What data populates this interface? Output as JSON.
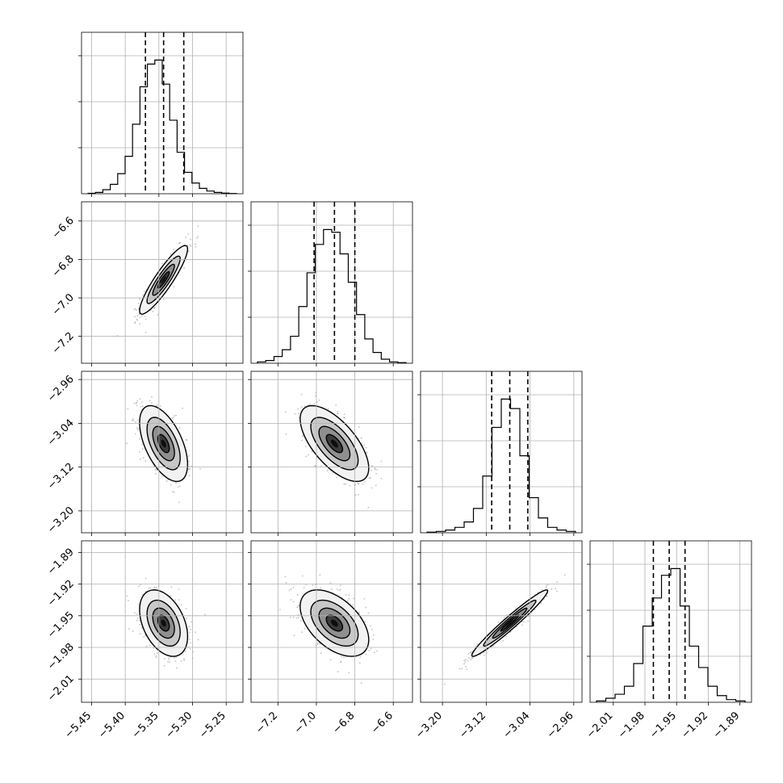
{
  "chart_data": {
    "type": "corner",
    "title": "",
    "grid": true,
    "parameters": [
      {
        "range": [
          -5.465,
          -5.225
        ],
        "ticks": [
          -5.45,
          -5.4,
          -5.35,
          -5.3,
          -5.25
        ],
        "tick_labels": [
          "−5.45",
          "−5.40",
          "−5.35",
          "−5.30",
          "−5.25"
        ],
        "quantiles": [
          -5.37,
          -5.343,
          -5.313
        ],
        "hist": [
          0.3,
          1,
          3,
          7,
          15,
          28,
          52,
          80,
          97,
          100,
          82,
          55,
          31,
          16,
          8,
          4,
          2,
          1,
          0.5,
          0.2
        ]
      },
      {
        "range": [
          -7.34,
          -6.5
        ],
        "ticks": [
          -7.2,
          -7.0,
          -6.8,
          -6.6
        ],
        "tick_labels": [
          "−7.2",
          "−7.0",
          "−6.8",
          "−6.6"
        ],
        "quantiles": [
          -7.012,
          -6.906,
          -6.8
        ],
        "hist": [
          1,
          2,
          5,
          10,
          20,
          42,
          67,
          88,
          99,
          97,
          81,
          60,
          36,
          18,
          8,
          3,
          1,
          0.5
        ]
      },
      {
        "range": [
          -3.24,
          -2.945
        ],
        "ticks": [
          -3.2,
          -3.12,
          -3.04,
          -2.96
        ],
        "tick_labels": [
          "−3.20",
          "−3.12",
          "−3.04",
          "−2.96"
        ],
        "quantiles": [
          -3.11,
          -3.077,
          -3.044
        ],
        "hist": [
          0.5,
          1,
          2,
          4,
          8,
          18,
          42,
          78,
          99,
          92,
          57,
          26,
          11,
          4,
          2,
          1
        ]
      },
      {
        "range": [
          -2.032,
          -1.879
        ],
        "ticks": [
          -2.01,
          -1.98,
          -1.95,
          -1.92,
          -1.89
        ],
        "tick_labels": [
          "−2.01",
          "−1.98",
          "−1.95",
          "−1.92",
          "−1.89"
        ],
        "quantiles": [
          -1.972,
          -1.957,
          -1.942
        ],
        "hist": [
          1,
          3,
          6,
          12,
          29,
          57,
          78,
          95,
          100,
          72,
          42,
          26,
          12,
          5,
          2,
          1
        ]
      }
    ],
    "pairs": [
      {
        "row": 1,
        "col": 0,
        "center": [
          -5.343,
          -6.906
        ],
        "sigma": [
          0.017,
          0.085
        ],
        "corr": 0.9
      },
      {
        "row": 2,
        "col": 0,
        "center": [
          -5.343,
          -3.077
        ],
        "sigma": [
          0.017,
          0.033
        ],
        "corr": -0.55
      },
      {
        "row": 2,
        "col": 1,
        "center": [
          -6.906,
          -3.077
        ],
        "sigma": [
          0.085,
          0.033
        ],
        "corr": -0.65
      },
      {
        "row": 3,
        "col": 0,
        "center": [
          -5.343,
          -1.957
        ],
        "sigma": [
          0.017,
          0.015
        ],
        "corr": -0.4
      },
      {
        "row": 3,
        "col": 1,
        "center": [
          -6.906,
          -1.957
        ],
        "sigma": [
          0.085,
          0.015
        ],
        "corr": -0.5
      },
      {
        "row": 3,
        "col": 2,
        "center": [
          -3.077,
          -1.957
        ],
        "sigma": [
          0.033,
          0.015
        ],
        "corr": 0.97
      }
    ]
  }
}
